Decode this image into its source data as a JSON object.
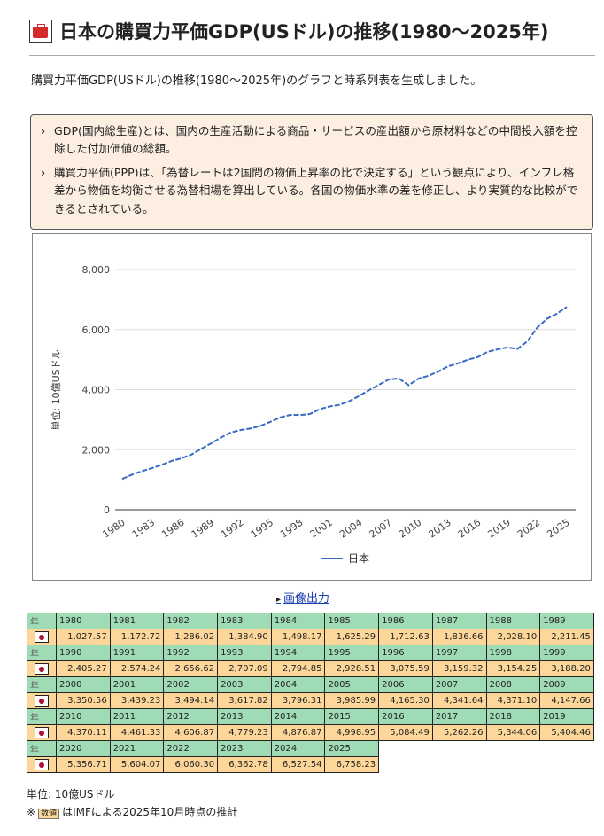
{
  "title": "日本の購買力平価GDP(USドル)の推移(1980～2025年)",
  "lead": "購買力平価GDP(USドル)の推移(1980～2025年)のグラフと時系列表を生成しました。",
  "notes": [
    "GDP(国内総生産)とは、国内の生産活動による商品・サービスの産出額から原材料などの中間投入額を控除した付加価値の総額。",
    "購買力平価(PPP)は、「為替レートは2国間の物価上昇率の比で決定する」という観点により、インフレ格差から物価を均衡させる為替相場を算出している。各国の物価水準の差を修正し、より実質的な比較ができるとされている。"
  ],
  "export_label": "画像出力",
  "table": {
    "year_header": "年"
  },
  "unit": "単位: 10億USドル",
  "note_prefix": "※",
  "note_tag": "数値",
  "note_text": "はIMFによる2025年10月時点の推計",
  "chart_data": {
    "type": "line",
    "ylabel": "単位: 10億USドル",
    "ylim": [
      0,
      8000
    ],
    "yticks": [
      "0",
      "2,000",
      "4,000",
      "6,000",
      "8,000"
    ],
    "xticks": [
      "1980",
      "1983",
      "1986",
      "1989",
      "1992",
      "1995",
      "1998",
      "2001",
      "2004",
      "2007",
      "2010",
      "2013",
      "2016",
      "2019",
      "2022",
      "2025"
    ],
    "series": [
      {
        "name": "日本",
        "color": "#3a6bc4"
      }
    ],
    "x": [
      1980,
      1981,
      1982,
      1983,
      1984,
      1985,
      1986,
      1987,
      1988,
      1989,
      1990,
      1991,
      1992,
      1993,
      1994,
      1995,
      1996,
      1997,
      1998,
      1999,
      2000,
      2001,
      2002,
      2003,
      2004,
      2005,
      2006,
      2007,
      2008,
      2009,
      2010,
      2011,
      2012,
      2013,
      2014,
      2015,
      2016,
      2017,
      2018,
      2019,
      2020,
      2021,
      2022,
      2023,
      2024,
      2025
    ],
    "values": [
      "1,027.57",
      "1,172.72",
      "1,286.02",
      "1,384.90",
      "1,498.17",
      "1,625.29",
      "1,712.63",
      "1,836.66",
      "2,028.10",
      "2,211.45",
      "2,405.27",
      "2,574.24",
      "2,656.62",
      "2,707.09",
      "2,794.85",
      "2,928.51",
      "3,075.59",
      "3,159.32",
      "3,154.25",
      "3,188.20",
      "3,350.56",
      "3,439.23",
      "3,494.14",
      "3,617.82",
      "3,796.31",
      "3,985.99",
      "4,165.30",
      "4,341.64",
      "4,371.10",
      "4,147.66",
      "4,370.11",
      "4,461.33",
      "4,606.87",
      "4,779.23",
      "4,876.87",
      "4,998.95",
      "5,084.49",
      "5,262.26",
      "5,344.06",
      "5,404.46",
      "5,356.71",
      "5,604.07",
      "6,060.30",
      "6,362.78",
      "6,527.54",
      "6,758.23"
    ]
  }
}
